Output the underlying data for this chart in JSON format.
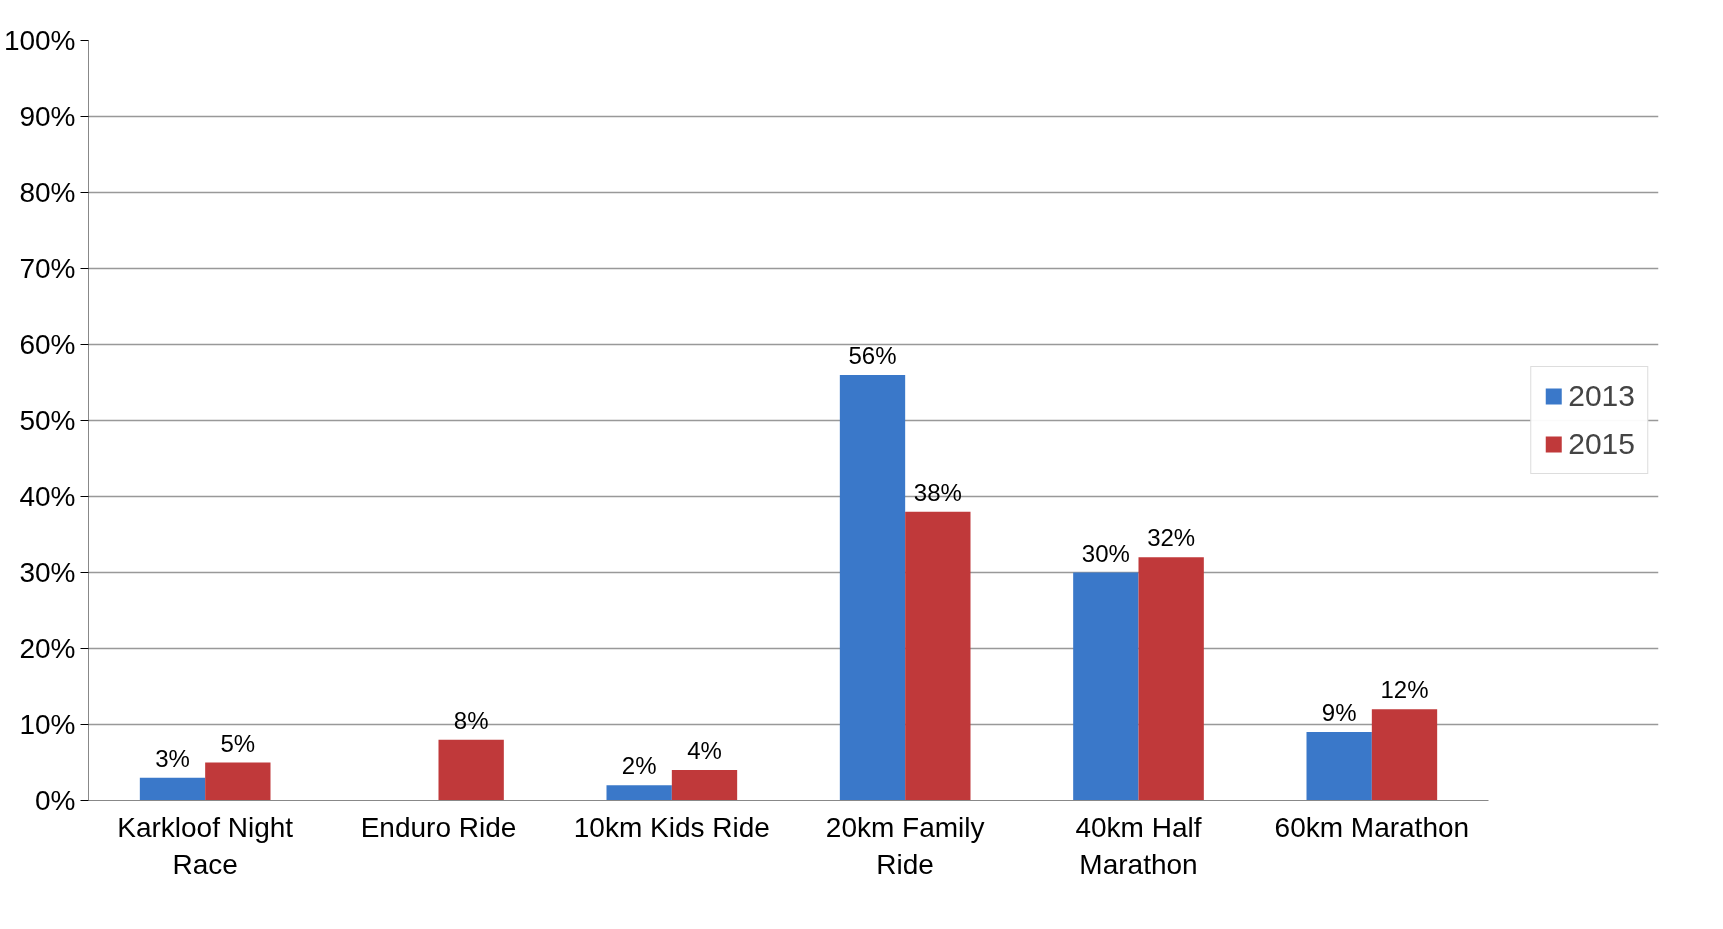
{
  "chart_data": {
    "type": "bar",
    "categories": [
      "Karkloof Night Race",
      "Enduro Ride",
      "10km Kids Ride",
      "20km Family Ride",
      "40km Half Marathon",
      "60km Marathon"
    ],
    "series": [
      {
        "name": "2013",
        "color": "#3a78c9",
        "values": [
          3,
          null,
          2,
          56,
          30,
          9
        ],
        "value_labels": [
          "3%",
          null,
          "2%",
          "56%",
          "30%",
          "9%"
        ]
      },
      {
        "name": "2015",
        "color": "#c0393a",
        "values": [
          5,
          8,
          4,
          38,
          32,
          12
        ],
        "value_labels": [
          "5%",
          "8%",
          "4%",
          "38%",
          "32%",
          "12%"
        ]
      }
    ],
    "ylim": [
      0,
      100
    ],
    "yticks": [
      {
        "value": 0,
        "label": "0%"
      },
      {
        "value": 10,
        "label": "10%"
      },
      {
        "value": 20,
        "label": "20%"
      },
      {
        "value": 30,
        "label": "30%"
      },
      {
        "value": 40,
        "label": "40%"
      },
      {
        "value": 50,
        "label": "50%"
      },
      {
        "value": 60,
        "label": "60%"
      },
      {
        "value": 70,
        "label": "70%"
      },
      {
        "value": 80,
        "label": "80%"
      },
      {
        "value": 90,
        "label": "90%"
      },
      {
        "value": 100,
        "label": "100%"
      }
    ],
    "grid": "y",
    "legend": "right"
  }
}
